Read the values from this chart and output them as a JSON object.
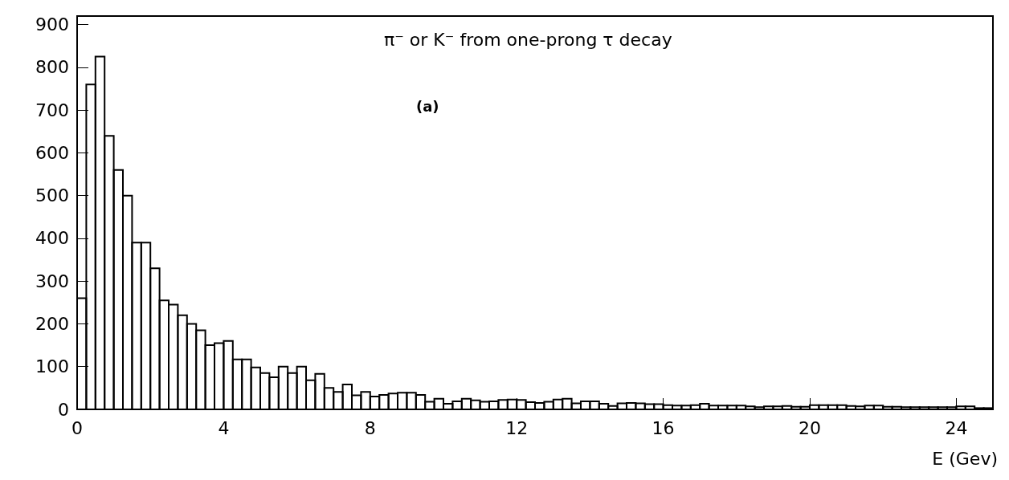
{
  "chart_data": {
    "type": "histogram",
    "xlabel": "E (Gev)",
    "annotations": [
      "π⁻ or K⁻ from one-prong τ decay",
      "(a)"
    ],
    "bins": [
      0,
      0.25,
      0.5,
      0.75,
      1,
      1.25,
      1.5,
      1.75,
      2,
      2.25,
      2.5,
      2.75,
      3,
      3.25,
      3.5,
      3.75,
      4,
      4.25,
      4.5,
      4.75,
      5,
      5.25,
      5.5,
      5.75,
      6,
      6.25,
      6.5,
      6.75,
      7,
      7.25,
      7.5,
      7.75,
      8,
      8.25,
      8.5,
      8.75,
      9,
      9.25,
      9.5,
      9.75,
      10,
      10.25,
      10.5,
      10.75,
      11,
      11.25,
      11.5,
      11.75,
      12,
      12.25,
      12.5,
      12.75,
      13,
      13.25,
      13.5,
      13.75,
      14,
      14.25,
      14.5,
      14.75,
      15,
      15.25,
      15.5,
      15.75,
      16,
      16.25,
      16.5,
      16.75,
      17,
      17.25,
      17.5,
      17.75,
      18,
      18.25,
      18.5,
      18.75,
      19,
      19.25,
      19.5,
      19.75,
      20,
      20.25,
      20.5,
      20.75,
      21,
      21.25,
      21.5,
      21.75,
      22,
      22.25,
      22.5,
      22.75,
      23,
      23.25,
      23.5,
      23.75,
      24,
      24.25,
      24.5,
      24.75,
      25
    ],
    "values": [
      260,
      760,
      825,
      640,
      560,
      500,
      390,
      390,
      330,
      255,
      245,
      220,
      200,
      185,
      150,
      155,
      160,
      117,
      117,
      98,
      85,
      75,
      100,
      85,
      100,
      68,
      83,
      50,
      41,
      58,
      33,
      41,
      30,
      34,
      37,
      39,
      39,
      34,
      18,
      25,
      13,
      19,
      25,
      21,
      18,
      19,
      22,
      23,
      22,
      17,
      15,
      18,
      23,
      25,
      14,
      19,
      19,
      13,
      8,
      14,
      15,
      14,
      12,
      12,
      10,
      9,
      9,
      10,
      13,
      9,
      9,
      9,
      9,
      7,
      5,
      7,
      7,
      8,
      6,
      6,
      10,
      10,
      10,
      10,
      8,
      7,
      9,
      9,
      6,
      6,
      5,
      5,
      5,
      5,
      5,
      5,
      7,
      7,
      3,
      3
    ],
    "color": "#000000",
    "xlim": [
      0,
      25
    ],
    "xticks": [
      0,
      4,
      8,
      12,
      16,
      20,
      24
    ],
    "ylim": [
      0,
      920
    ],
    "yticks": [
      0,
      100,
      200,
      300,
      400,
      500,
      600,
      700,
      800,
      900
    ],
    "grid": false
  }
}
